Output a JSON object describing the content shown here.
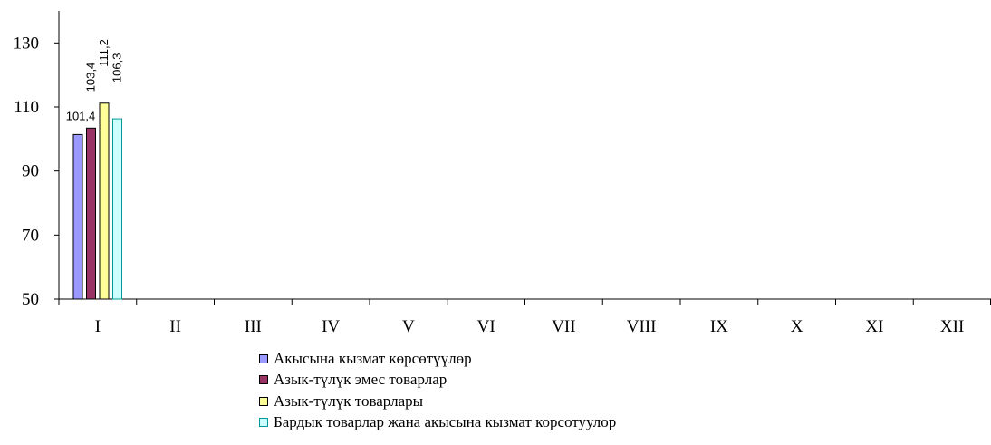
{
  "chart_data": {
    "type": "bar",
    "categories": [
      "I",
      "II",
      "III",
      "IV",
      "V",
      "VI",
      "VII",
      "VIII",
      "IX",
      "X",
      "XI",
      "XII"
    ],
    "ylim": [
      50,
      140
    ],
    "yticks": [
      50,
      70,
      90,
      110,
      130
    ],
    "legend_position": "bottom",
    "grid": false,
    "series": [
      {
        "name": "Акысына кызмат көрсөтүүлөр",
        "color": "#9999ff",
        "values": [
          101.4,
          null,
          null,
          null,
          null,
          null,
          null,
          null,
          null,
          null,
          null,
          null
        ],
        "labels": [
          "101,4"
        ]
      },
      {
        "name": "Азык-түлүк эмес товарлар",
        "color": "#993366",
        "values": [
          103.4,
          null,
          null,
          null,
          null,
          null,
          null,
          null,
          null,
          null,
          null,
          null
        ],
        "labels": [
          "103,4"
        ]
      },
      {
        "name": "Азык-түлүк товарлары",
        "color": "#ffff99",
        "values": [
          111.2,
          null,
          null,
          null,
          null,
          null,
          null,
          null,
          null,
          null,
          null,
          null
        ],
        "labels": [
          "111,2"
        ]
      },
      {
        "name": "Бардык товарлар жана акысына кызмат корсотуулор",
        "color": "#ccffff",
        "border": "#009999",
        "values": [
          106.3,
          null,
          null,
          null,
          null,
          null,
          null,
          null,
          null,
          null,
          null,
          null
        ],
        "labels": [
          "106,3"
        ]
      }
    ]
  }
}
